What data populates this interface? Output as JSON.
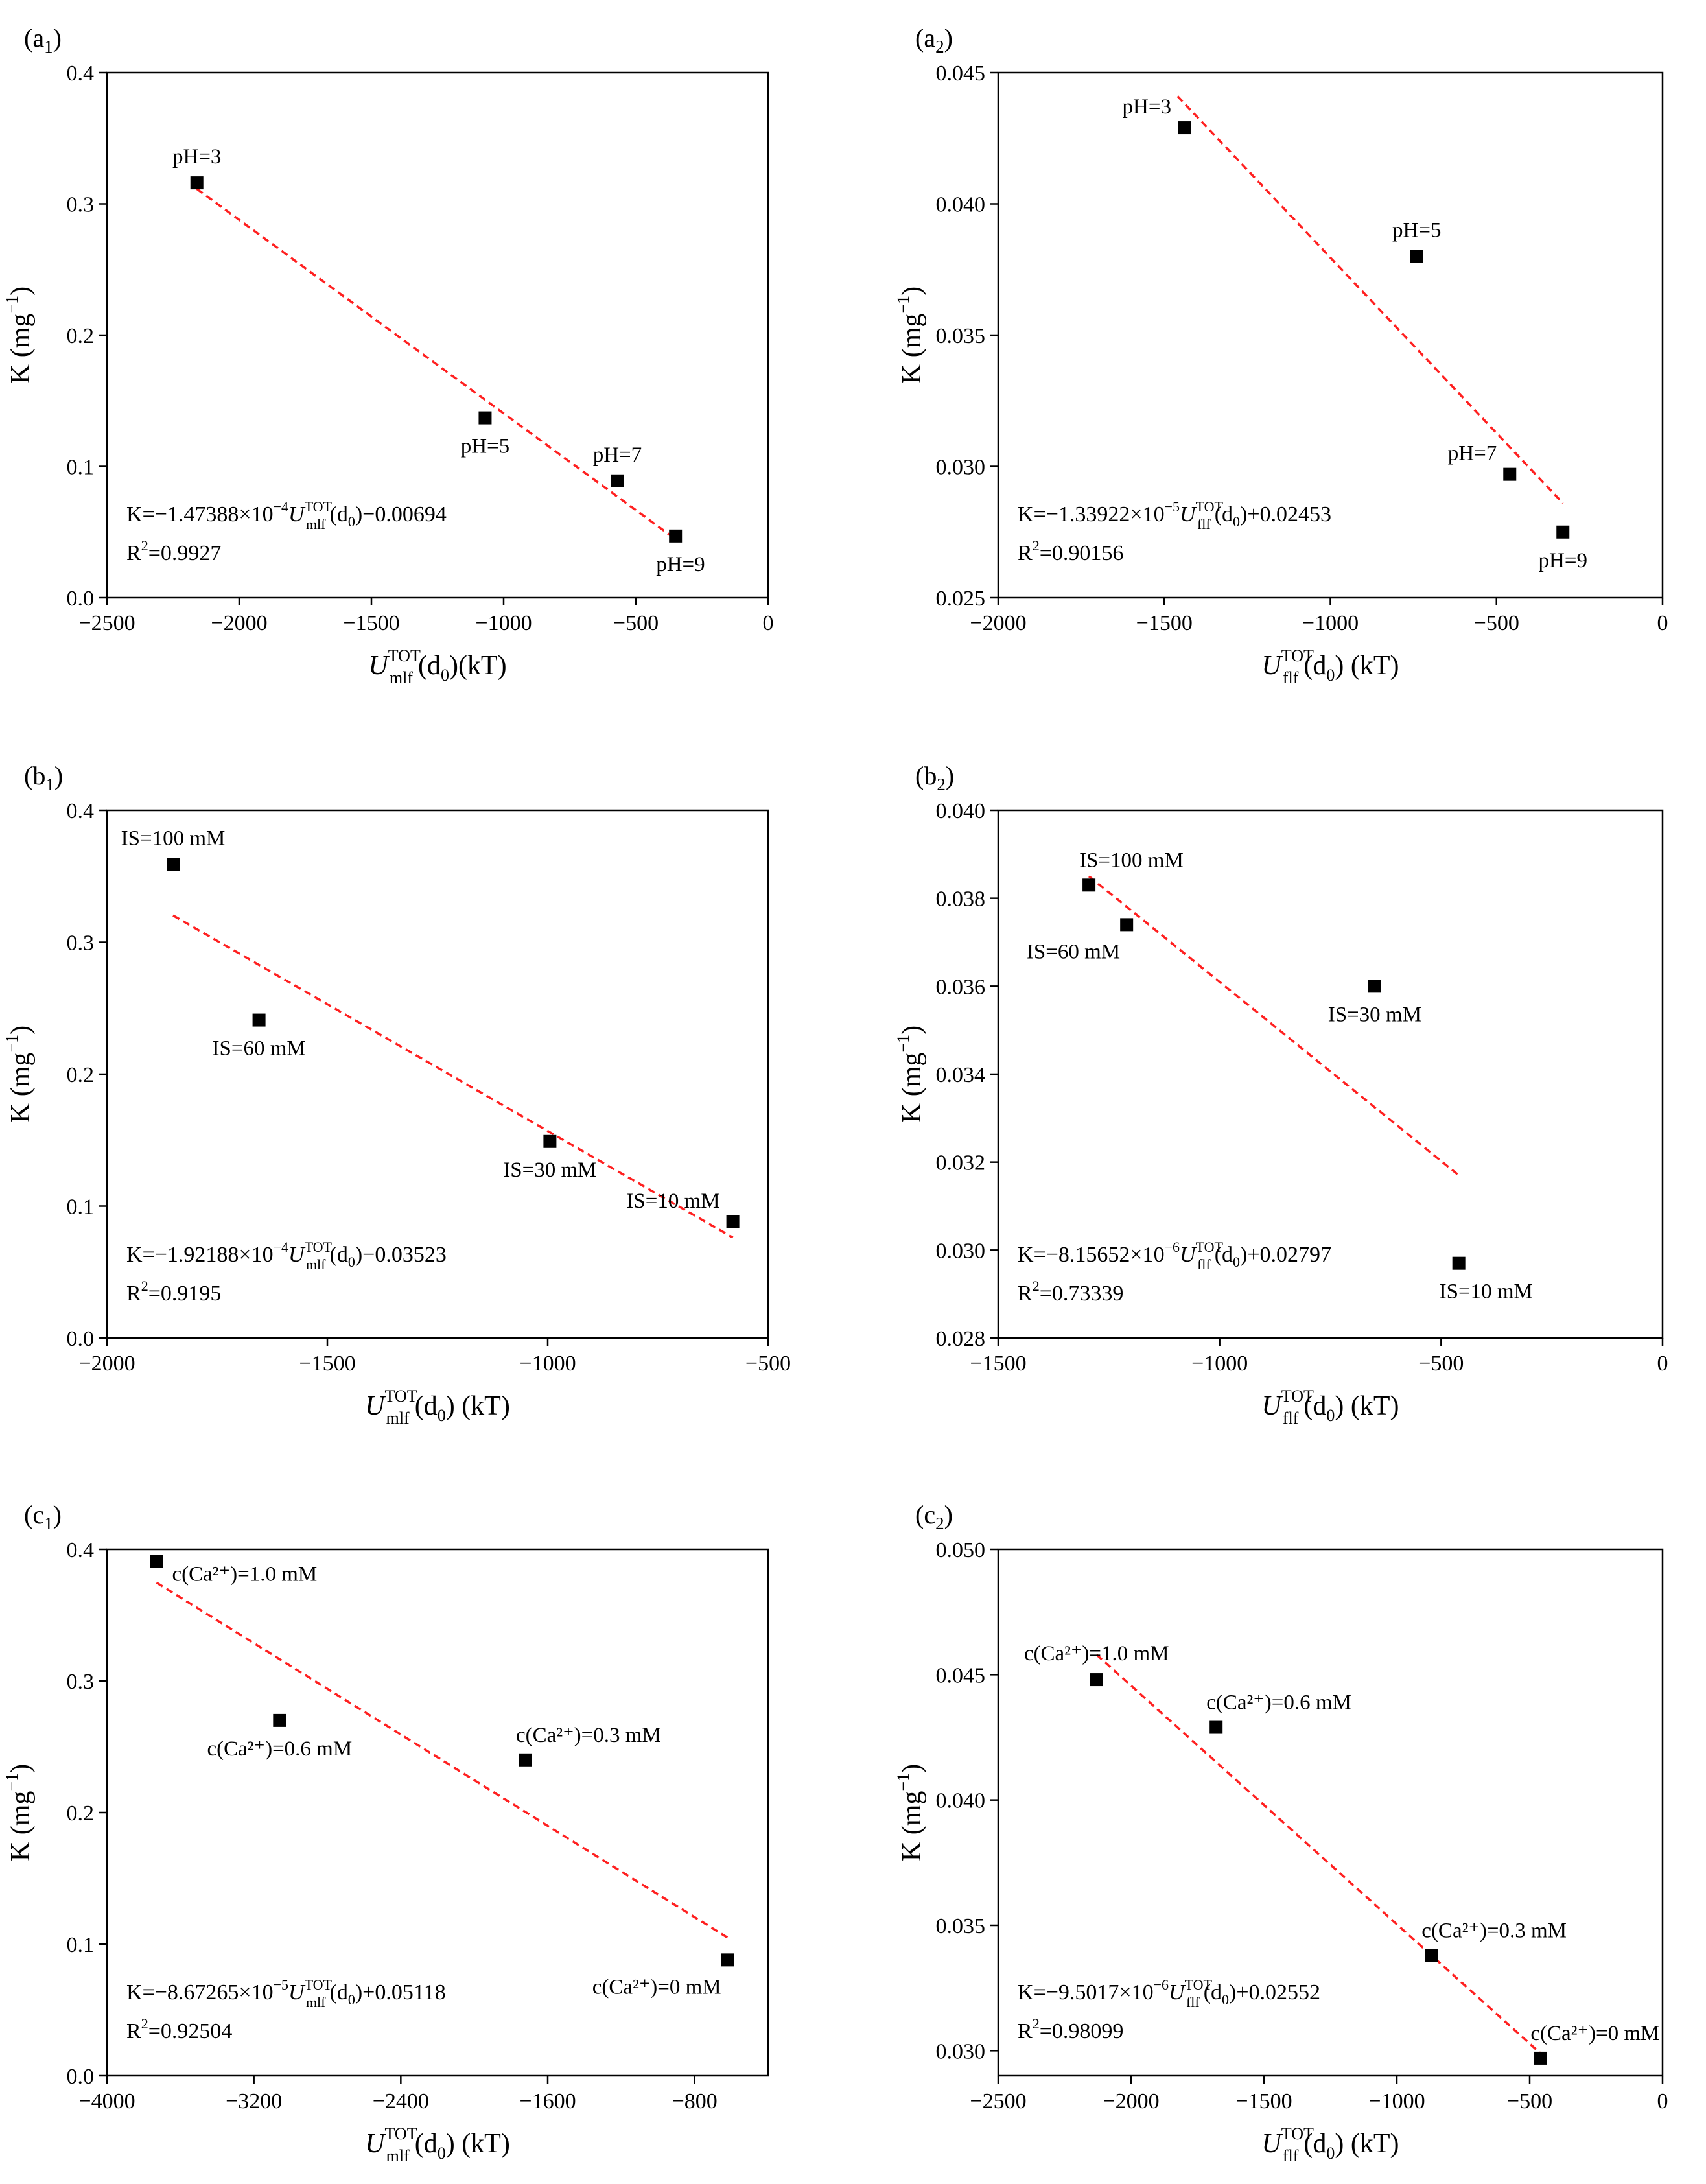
{
  "chart_data": [
    {
      "id": "a1",
      "panel_label": "a",
      "panel_sub": "1",
      "type": "scatter",
      "xlabel_main": "U",
      "xlabel_sup": "TOT",
      "xlabel_sub": "mlf",
      "xlabel_tail": "(d",
      "xlabel_d0": "0",
      "xlabel_unit": ")(kT)",
      "ylabel": "K (mg",
      "ylabel_sup": "−1",
      "ylabel_close": ")",
      "xlim": [
        -2500,
        0
      ],
      "ylim": [
        0.0,
        0.4
      ],
      "xticks": [
        -2500,
        -2000,
        -1500,
        -1000,
        -500,
        0
      ],
      "xtick_labels": [
        "−2500",
        "−2000",
        "−1500",
        "−1000",
        "−500",
        "0"
      ],
      "yticks": [
        0.0,
        0.1,
        0.2,
        0.3,
        0.4
      ],
      "ytick_labels": [
        "0.0",
        "0.1",
        "0.2",
        "0.3",
        "0.4"
      ],
      "points": [
        {
          "x": -2160,
          "y": 0.316,
          "label": "pH=3",
          "pos": "above"
        },
        {
          "x": -1070,
          "y": 0.137,
          "label": "pH=5",
          "pos": "below"
        },
        {
          "x": -570,
          "y": 0.089,
          "label": "pH=7",
          "pos": "above"
        },
        {
          "x": -350,
          "y": 0.047,
          "label": "pH=9",
          "pos": "below-right"
        }
      ],
      "fit": {
        "x1": -2160,
        "x2": -350,
        "y1": 0.3114,
        "y2": 0.0446
      },
      "eq_pre": "K=−1.47388×10",
      "eq_exp": "−4",
      "eq_u": "U",
      "eq_sup": "TOT",
      "eq_sub": "mlf",
      "eq_mid": "(d",
      "eq_d0": "0",
      "eq_post": ")−0.00694",
      "r2_pre": "R",
      "r2_sup": "2",
      "r2_post": "=0.9927",
      "colors": {
        "fit": "#ff2020",
        "marker": "#000000"
      }
    },
    {
      "id": "a2",
      "panel_label": "a",
      "panel_sub": "2",
      "type": "scatter",
      "xlabel_main": "U",
      "xlabel_sup": "TOT",
      "xlabel_sub": "flf",
      "xlabel_tail": "(d",
      "xlabel_d0": "0",
      "xlabel_unit": ") (kT)",
      "ylabel": "K (mg",
      "ylabel_sup": "−1",
      "ylabel_close": ")",
      "xlim": [
        -2000,
        0
      ],
      "ylim": [
        0.025,
        0.045
      ],
      "xticks": [
        -2000,
        -1500,
        -1000,
        -500,
        0
      ],
      "xtick_labels": [
        "−2000",
        "−1500",
        "−1000",
        "−500",
        "0"
      ],
      "yticks": [
        0.025,
        0.03,
        0.035,
        0.04,
        0.045
      ],
      "ytick_labels": [
        "0.025",
        "0.030",
        "0.035",
        "0.040",
        "0.045"
      ],
      "points": [
        {
          "x": -1440,
          "y": 0.0429,
          "label": "pH=3",
          "pos": "above-left"
        },
        {
          "x": -740,
          "y": 0.038,
          "label": "pH=5",
          "pos": "above"
        },
        {
          "x": -460,
          "y": 0.0297,
          "label": "pH=7",
          "pos": "above-left"
        },
        {
          "x": -300,
          "y": 0.0275,
          "label": "pH=9",
          "pos": "below"
        }
      ],
      "fit": {
        "x1": -1460,
        "x2": -300,
        "y1": 0.0441,
        "y2": 0.0286
      },
      "eq_pre": "K=−1.33922×10",
      "eq_exp": "−5",
      "eq_u": "U",
      "eq_sup": "TOT",
      "eq_sub": "flf",
      "eq_mid": "(d",
      "eq_d0": "0",
      "eq_post": ")+0.02453",
      "r2_pre": "R",
      "r2_sup": "2",
      "r2_post": "=0.90156",
      "colors": {
        "fit": "#ff2020",
        "marker": "#000000"
      }
    },
    {
      "id": "b1",
      "panel_label": "b",
      "panel_sub": "1",
      "type": "scatter",
      "xlabel_main": "U",
      "xlabel_sup": "TOT",
      "xlabel_sub": "mlf",
      "xlabel_tail": "(d",
      "xlabel_d0": "0",
      "xlabel_unit": ") (kT)",
      "ylabel": "K (mg",
      "ylabel_sup": "−1",
      "ylabel_close": ")",
      "xlim": [
        -2000,
        -500
      ],
      "ylim": [
        0.0,
        0.4
      ],
      "xticks": [
        -2000,
        -1500,
        -1000,
        -500
      ],
      "xtick_labels": [
        "−2000",
        "−1500",
        "−1000",
        "−500"
      ],
      "yticks": [
        0.0,
        0.1,
        0.2,
        0.3,
        0.4
      ],
      "ytick_labels": [
        "0.0",
        "0.1",
        "0.2",
        "0.3",
        "0.4"
      ],
      "points": [
        {
          "x": -1850,
          "y": 0.359,
          "label": "IS=100 mM",
          "pos": "above"
        },
        {
          "x": -1655,
          "y": 0.241,
          "label": "IS=60 mM",
          "pos": "below"
        },
        {
          "x": -995,
          "y": 0.149,
          "label": "IS=30 mM",
          "pos": "below"
        },
        {
          "x": -580,
          "y": 0.088,
          "label": "IS=10 mM",
          "pos": "above-left"
        }
      ],
      "fit": {
        "x1": -1850,
        "x2": -580,
        "y1": 0.3203,
        "y2": 0.0762
      },
      "eq_pre": "K=−1.92188×10",
      "eq_exp": "−4",
      "eq_u": "U",
      "eq_sup": "TOT",
      "eq_sub": "mlf",
      "eq_mid": "(d",
      "eq_d0": "0",
      "eq_post": ")−0.03523",
      "r2_pre": "R",
      "r2_sup": "2",
      "r2_post": "=0.9195",
      "colors": {
        "fit": "#ff2020",
        "marker": "#000000"
      }
    },
    {
      "id": "b2",
      "panel_label": "b",
      "panel_sub": "2",
      "type": "scatter",
      "xlabel_main": "U",
      "xlabel_sup": "TOT",
      "xlabel_sub": "flf",
      "xlabel_tail": "(d",
      "xlabel_d0": "0",
      "xlabel_unit": ") (kT)",
      "ylabel": "K (mg",
      "ylabel_sup": "−1",
      "ylabel_close": ")",
      "xlim": [
        -1500,
        0
      ],
      "ylim": [
        0.028,
        0.04
      ],
      "xticks": [
        -1500,
        -1000,
        -500,
        0
      ],
      "xtick_labels": [
        "−1500",
        "−1000",
        "−500",
        "0"
      ],
      "yticks": [
        0.028,
        0.03,
        0.032,
        0.034,
        0.036,
        0.038,
        0.04
      ],
      "ytick_labels": [
        "0.028",
        "0.030",
        "0.032",
        "0.034",
        "0.036",
        "0.038",
        "0.040"
      ],
      "points": [
        {
          "x": -1295,
          "y": 0.0383,
          "label": "IS=100 mM",
          "pos": "above-right"
        },
        {
          "x": -1210,
          "y": 0.0374,
          "label": "IS=60 mM",
          "pos": "below-left"
        },
        {
          "x": -650,
          "y": 0.036,
          "label": "IS=30 mM",
          "pos": "below"
        },
        {
          "x": -460,
          "y": 0.0297,
          "label": "IS=10 mM",
          "pos": "below-right"
        }
      ],
      "fit": {
        "x1": -1295,
        "x2": -460,
        "y1": 0.0385,
        "y2": 0.0317
      },
      "eq_pre": "K=−8.15652×10",
      "eq_exp": "−6",
      "eq_u": "U",
      "eq_sup": "TOT",
      "eq_sub": "flf",
      "eq_mid": "(d",
      "eq_d0": "0",
      "eq_post": ")+0.02797",
      "r2_pre": "R",
      "r2_sup": "2",
      "r2_post": "=0.73339",
      "colors": {
        "fit": "#ff2020",
        "marker": "#000000"
      }
    },
    {
      "id": "c1",
      "panel_label": "c",
      "panel_sub": "1",
      "type": "scatter",
      "xlabel_main": "U",
      "xlabel_sup": "TOT",
      "xlabel_sub": "mlf",
      "xlabel_tail": "(d",
      "xlabel_d0": "0",
      "xlabel_unit": ") (kT)",
      "ylabel": "K (mg",
      "ylabel_sup": "−1",
      "ylabel_close": ")",
      "xlim": [
        -4000,
        -400
      ],
      "ylim": [
        0.0,
        0.4
      ],
      "xticks": [
        -4000,
        -3200,
        -2400,
        -1600,
        -800
      ],
      "xtick_labels": [
        "−4000",
        "−3200",
        "−2400",
        "−1600",
        "−800"
      ],
      "yticks": [
        0.0,
        0.1,
        0.2,
        0.3,
        0.4
      ],
      "ytick_labels": [
        "0.0",
        "0.1",
        "0.2",
        "0.3",
        "0.4"
      ],
      "points": [
        {
          "x": -3730,
          "y": 0.391,
          "label": "c(Ca²⁺)=1.0 mM",
          "pos": "right"
        },
        {
          "x": -3060,
          "y": 0.27,
          "label": "c(Ca²⁺)=0.6 mM",
          "pos": "below"
        },
        {
          "x": -1720,
          "y": 0.24,
          "label": "c(Ca²⁺)=0.3 mM",
          "pos": "above-right"
        },
        {
          "x": -620,
          "y": 0.088,
          "label": "c(Ca²⁺)=0 mM",
          "pos": "below-left"
        }
      ],
      "fit": {
        "x1": -3730,
        "x2": -620,
        "y1": 0.3747,
        "y2": 0.1049
      },
      "eq_pre": "K=−8.67265×10",
      "eq_exp": "−5",
      "eq_u": "U",
      "eq_sup": "TOT",
      "eq_sub": "mlf",
      "eq_mid": "(d",
      "eq_d0": "0",
      "eq_post": ")+0.05118",
      "r2_pre": "R",
      "r2_sup": "2",
      "r2_post": "=0.92504",
      "colors": {
        "fit": "#ff2020",
        "marker": "#000000"
      }
    },
    {
      "id": "c2",
      "panel_label": "c",
      "panel_sub": "2",
      "type": "scatter",
      "xlabel_main": "U",
      "xlabel_sup": "TOT",
      "xlabel_sub": "flf",
      "xlabel_tail": "(d",
      "xlabel_d0": "0",
      "xlabel_unit": ") (kT)",
      "ylabel": "K (mg",
      "ylabel_sup": "−1",
      "ylabel_close": ")",
      "xlim": [
        -2500,
        0
      ],
      "ylim": [
        0.029,
        0.05
      ],
      "xticks": [
        -2500,
        -2000,
        -1500,
        -1000,
        -500,
        0
      ],
      "xtick_labels": [
        "−2500",
        "−2000",
        "−1500",
        "−1000",
        "−500",
        "0"
      ],
      "yticks": [
        0.03,
        0.035,
        0.04,
        0.045,
        0.05
      ],
      "ytick_labels": [
        "0.030",
        "0.035",
        "0.040",
        "0.045",
        "0.050"
      ],
      "points": [
        {
          "x": -2130,
          "y": 0.0448,
          "label": "c(Ca²⁺)=1.0 mM",
          "pos": "above"
        },
        {
          "x": -1680,
          "y": 0.0429,
          "label": "c(Ca²⁺)=0.6 mM",
          "pos": "above-right"
        },
        {
          "x": -870,
          "y": 0.0338,
          "label": "c(Ca²⁺)=0.3 mM",
          "pos": "above-right"
        },
        {
          "x": -460,
          "y": 0.0297,
          "label": "c(Ca²⁺)=0 mM",
          "pos": "above-right"
        }
      ],
      "fit": {
        "x1": -2130,
        "x2": -460,
        "y1": 0.0458,
        "y2": 0.0299
      },
      "eq_pre": "K=−9.5017×10",
      "eq_exp": "−6",
      "eq_u": "U",
      "eq_sup": "TOT",
      "eq_sub": "flf",
      "eq_mid": "(d",
      "eq_d0": "0",
      "eq_post": ")+0.02552",
      "r2_pre": "R",
      "r2_sup": "2",
      "r2_post": "=0.98099",
      "colors": {
        "fit": "#ff2020",
        "marker": "#000000"
      }
    }
  ]
}
